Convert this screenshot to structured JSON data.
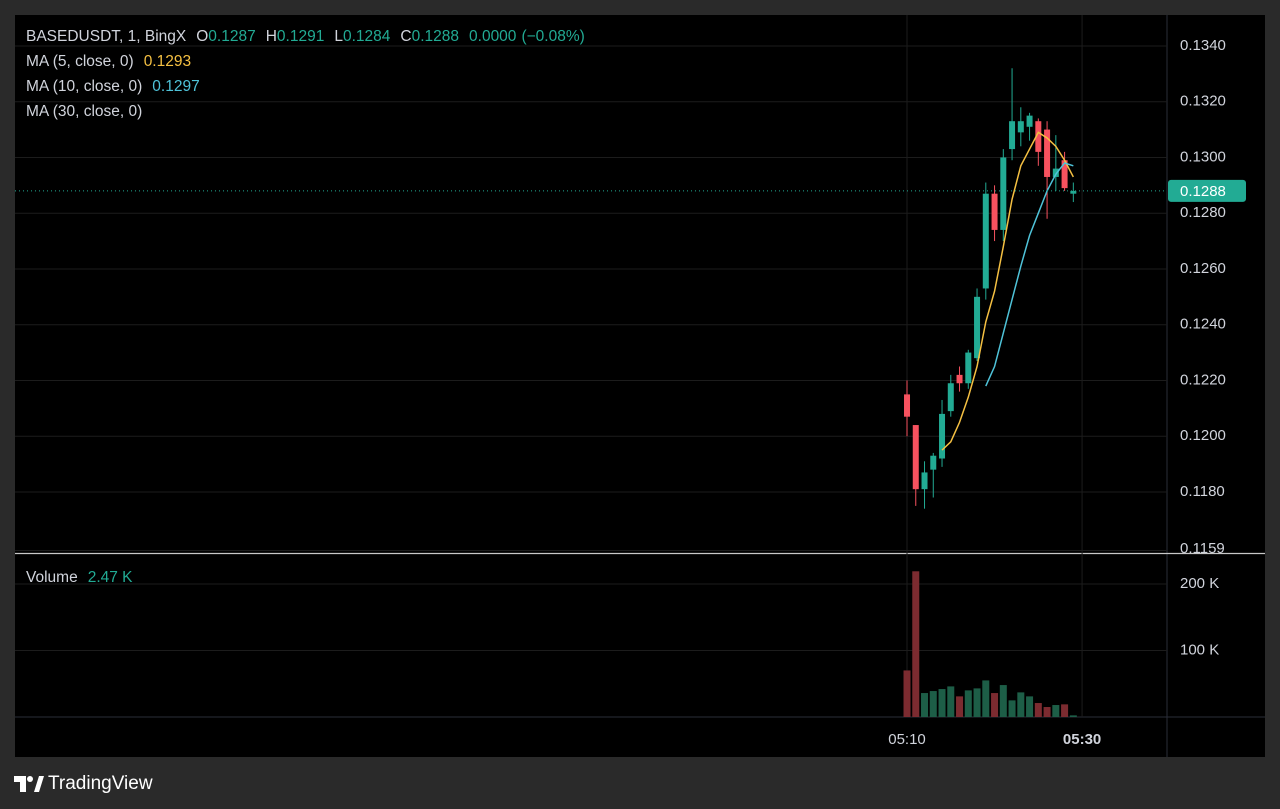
{
  "chart_data": {
    "type": "candlestick",
    "title": "BASEDUSDT, 1, BingX",
    "ohlc_labels": [
      "O",
      "H",
      "L",
      "C"
    ],
    "change": {
      "value": 0,
      "label": "0.0000"
    },
    "change_percent": {
      "value": -0.08,
      "label": "(−0.08%)"
    },
    "x": [
      0,
      1,
      2,
      3,
      4,
      5,
      6,
      7,
      8,
      9,
      10,
      11,
      12,
      13,
      14,
      15,
      16,
      17,
      18,
      19
    ],
    "xlim": [
      -101.9,
      29.7
    ],
    "xticks": [
      {
        "value": 0,
        "label": "05:10"
      },
      {
        "value": 20,
        "label": "05:30"
      }
    ],
    "open": [
      0.1215,
      0.1204,
      0.1181,
      0.1188,
      0.1192,
      0.1209,
      0.1222,
      0.1219,
      0.1228,
      0.1253,
      0.1287,
      0.1274,
      0.1303,
      0.1309,
      0.1311,
      0.1313,
      0.131,
      0.1293,
      0.1299,
      0.1287
    ],
    "high": [
      0.122,
      0.1204,
      0.1191,
      0.1194,
      0.1213,
      0.1222,
      0.1225,
      0.1231,
      0.1253,
      0.1291,
      0.129,
      0.1303,
      0.1332,
      0.1318,
      0.1316,
      0.1314,
      0.1313,
      0.1308,
      0.1302,
      0.1291
    ],
    "low": [
      0.12,
      0.1175,
      0.1174,
      0.1178,
      0.1189,
      0.1207,
      0.1216,
      0.1217,
      0.1227,
      0.1249,
      0.127,
      0.127,
      0.1299,
      0.1304,
      0.1306,
      0.1297,
      0.1278,
      0.1288,
      0.1288,
      0.1284
    ],
    "close": [
      0.1207,
      0.1181,
      0.1187,
      0.1193,
      0.1208,
      0.1219,
      0.1219,
      0.123,
      0.125,
      0.1287,
      0.1274,
      0.13,
      0.1313,
      0.1313,
      0.1315,
      0.1302,
      0.1293,
      0.1296,
      0.1289,
      0.1288
    ],
    "up_color": "#22ab94",
    "down_color": "#f7525f",
    "ylim": [
      0.11581,
      0.13511
    ],
    "yticks": [
      {
        "value": 0.134,
        "label": "0.1340"
      },
      {
        "value": 0.132,
        "label": "0.1320"
      },
      {
        "value": 0.13,
        "label": "0.1300"
      },
      {
        "value": 0.128,
        "label": "0.1280"
      },
      {
        "value": 0.126,
        "label": "0.1260"
      },
      {
        "value": 0.124,
        "label": "0.1240"
      },
      {
        "value": 0.122,
        "label": "0.1220"
      },
      {
        "value": 0.12,
        "label": "0.1200"
      },
      {
        "value": 0.118,
        "label": "0.1180"
      },
      0.1159
    ],
    "grid": true,
    "last_price_line": true,
    "series": [
      {
        "name": "MA (5, close, 0)",
        "color": "#f5c042",
        "values": [
          null,
          null,
          null,
          null,
          0.1195,
          0.1198,
          0.1205,
          0.1214,
          0.1225,
          0.1241,
          0.1252,
          0.1268,
          0.1285,
          0.1297,
          0.1303,
          0.1309,
          0.1307,
          0.1304,
          0.1299,
          0.1293
        ]
      },
      {
        "name": "MA (10, close, 0)",
        "color": "#4fc3d9",
        "values": [
          null,
          null,
          null,
          null,
          null,
          null,
          null,
          null,
          null,
          0.1218,
          0.1225,
          0.1237,
          0.1249,
          0.1261,
          0.1272,
          0.128,
          0.1288,
          0.1294,
          0.1298,
          0.1297
        ]
      },
      {
        "name": "MA (30, close, 0)",
        "values": [
          null,
          null,
          null,
          null,
          null,
          null,
          null,
          null,
          null,
          null,
          null,
          null,
          null,
          null,
          null,
          null,
          null,
          null,
          null,
          null
        ]
      }
    ],
    "volume": {
      "name": "Volume",
      "values": [
        70000,
        219000,
        36000,
        39000,
        42000,
        46000,
        31000,
        40000,
        43000,
        55000,
        36000,
        48000,
        25000,
        37000,
        31000,
        21000,
        15000,
        18000,
        19000,
        2470
      ],
      "value_labels": [
        null,
        null,
        null,
        null,
        null,
        null,
        null,
        null,
        null,
        null,
        null,
        null,
        null,
        null,
        null,
        null,
        null,
        null,
        null,
        "2.47 K"
      ],
      "up_color": "#1d5e47",
      "down_color": "#7c2b30",
      "ylim": [
        0,
        245000
      ],
      "yticks": [
        {
          "value": 200000,
          "label": "200 K"
        },
        {
          "value": 100000,
          "label": "100 K"
        }
      ]
    }
  },
  "brand": "TradingView"
}
